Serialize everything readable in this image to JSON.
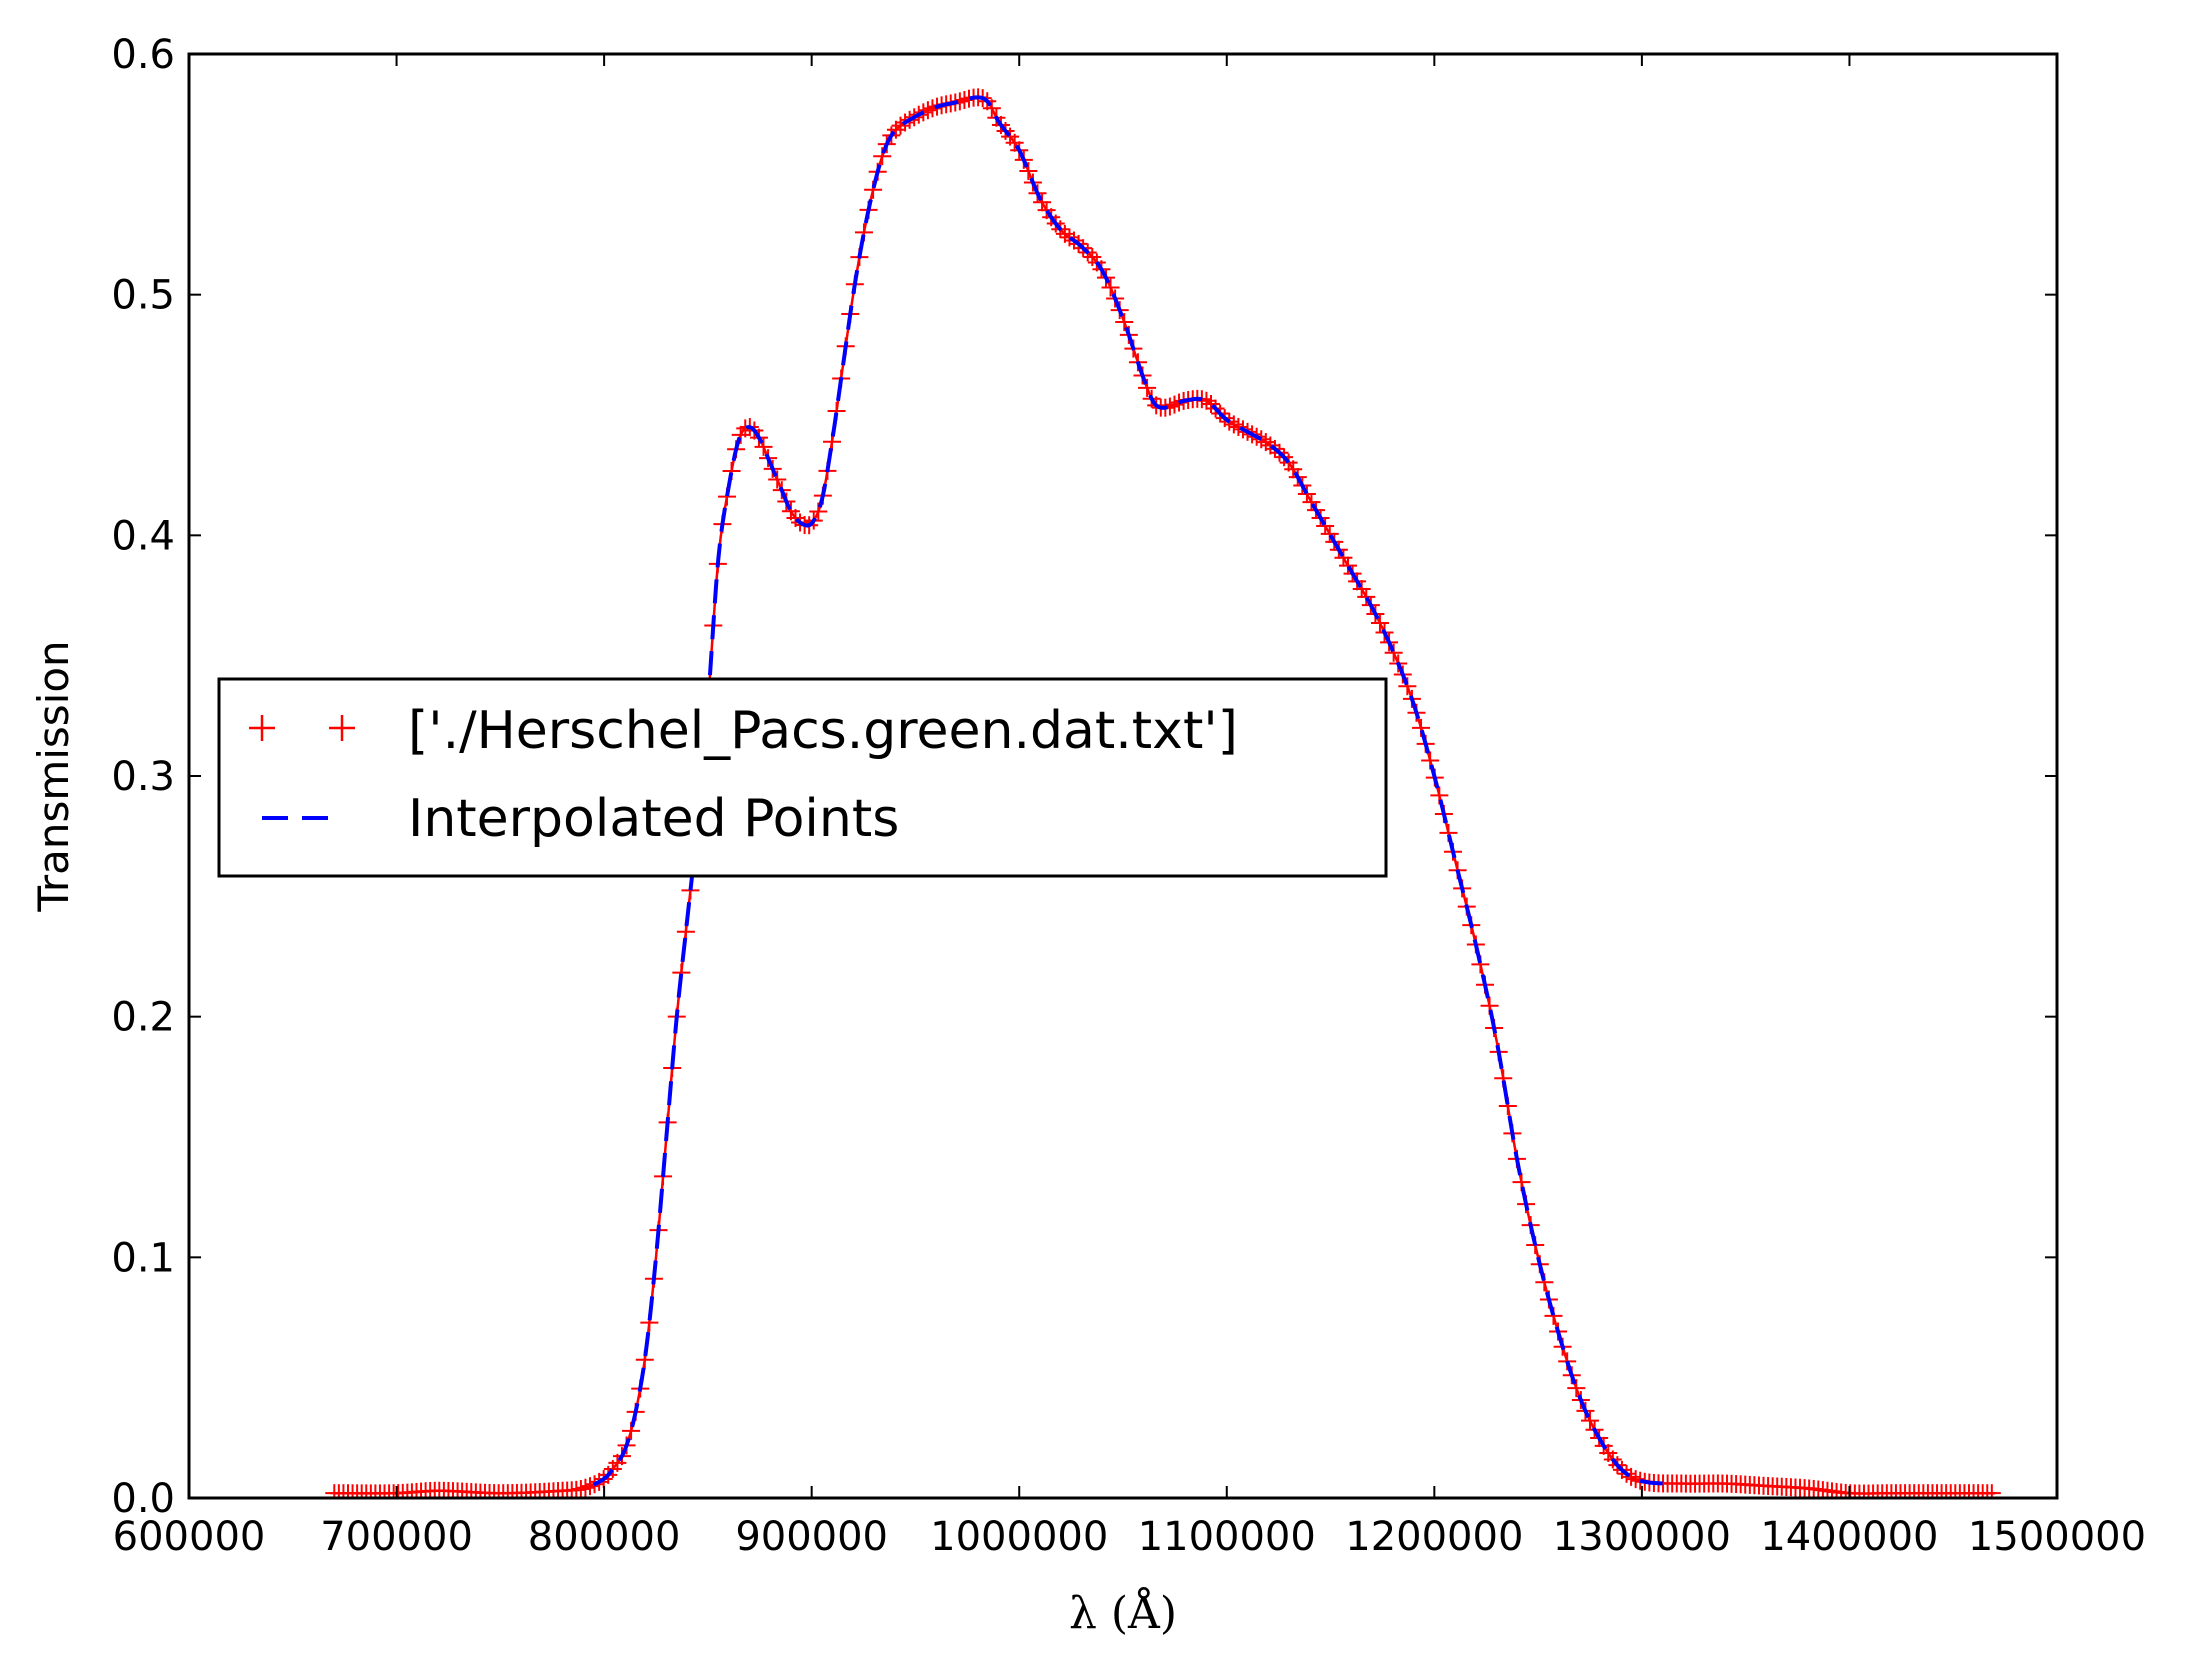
{
  "chart_data": {
    "type": "line",
    "xlabel": "λ (Å)",
    "ylabel": "Transmission",
    "xlim": [
      600000,
      1500000
    ],
    "ylim": [
      0.0,
      0.6
    ],
    "grid": false,
    "legend_position": "center-left",
    "x_ticks": [
      "600000",
      "700000",
      "800000",
      "900000",
      "1000000",
      "1100000",
      "1200000",
      "1300000",
      "1400000",
      "1500000"
    ],
    "y_ticks": [
      "0.0",
      "0.1",
      "0.2",
      "0.3",
      "0.4",
      "0.5",
      "0.6"
    ],
    "series": [
      {
        "name": "['./Herschel_Pacs.green.dat.txt']",
        "style": "markers-plus",
        "color": "#ff0000",
        "points": [
          [
            670000,
            0.002
          ],
          [
            700000,
            0.002
          ],
          [
            720000,
            0.003
          ],
          [
            750000,
            0.002
          ],
          [
            780000,
            0.003
          ],
          [
            790000,
            0.004
          ],
          [
            800000,
            0.008
          ],
          [
            805000,
            0.013
          ],
          [
            810000,
            0.02
          ],
          [
            815000,
            0.035
          ],
          [
            820000,
            0.06
          ],
          [
            825000,
            0.1
          ],
          [
            830000,
            0.15
          ],
          [
            835000,
            0.2
          ],
          [
            840000,
            0.24
          ],
          [
            845000,
            0.28
          ],
          [
            850000,
            0.33
          ],
          [
            855000,
            0.39
          ],
          [
            860000,
            0.42
          ],
          [
            865000,
            0.44
          ],
          [
            870000,
            0.445
          ],
          [
            875000,
            0.44
          ],
          [
            880000,
            0.43
          ],
          [
            885000,
            0.42
          ],
          [
            890000,
            0.41
          ],
          [
            895000,
            0.405
          ],
          [
            900000,
            0.405
          ],
          [
            905000,
            0.415
          ],
          [
            910000,
            0.44
          ],
          [
            915000,
            0.47
          ],
          [
            920000,
            0.5
          ],
          [
            925000,
            0.525
          ],
          [
            930000,
            0.545
          ],
          [
            935000,
            0.56
          ],
          [
            940000,
            0.568
          ],
          [
            950000,
            0.574
          ],
          [
            960000,
            0.578
          ],
          [
            970000,
            0.58
          ],
          [
            980000,
            0.582
          ],
          [
            985000,
            0.58
          ],
          [
            990000,
            0.572
          ],
          [
            1000000,
            0.56
          ],
          [
            1010000,
            0.54
          ],
          [
            1020000,
            0.527
          ],
          [
            1030000,
            0.52
          ],
          [
            1040000,
            0.51
          ],
          [
            1050000,
            0.49
          ],
          [
            1060000,
            0.465
          ],
          [
            1065000,
            0.455
          ],
          [
            1070000,
            0.453
          ],
          [
            1080000,
            0.456
          ],
          [
            1090000,
            0.456
          ],
          [
            1100000,
            0.448
          ],
          [
            1110000,
            0.443
          ],
          [
            1120000,
            0.438
          ],
          [
            1130000,
            0.43
          ],
          [
            1140000,
            0.415
          ],
          [
            1150000,
            0.4
          ],
          [
            1160000,
            0.385
          ],
          [
            1170000,
            0.37
          ],
          [
            1180000,
            0.352
          ],
          [
            1190000,
            0.33
          ],
          [
            1200000,
            0.3
          ],
          [
            1210000,
            0.265
          ],
          [
            1220000,
            0.23
          ],
          [
            1230000,
            0.19
          ],
          [
            1240000,
            0.14
          ],
          [
            1250000,
            0.1
          ],
          [
            1260000,
            0.068
          ],
          [
            1270000,
            0.042
          ],
          [
            1280000,
            0.024
          ],
          [
            1290000,
            0.012
          ],
          [
            1300000,
            0.007
          ],
          [
            1320000,
            0.006
          ],
          [
            1340000,
            0.006
          ],
          [
            1360000,
            0.005
          ],
          [
            1380000,
            0.004
          ],
          [
            1400000,
            0.002
          ],
          [
            1420000,
            0.002
          ],
          [
            1440000,
            0.002
          ],
          [
            1470000,
            0.002
          ]
        ]
      },
      {
        "name": "Interpolated Points",
        "style": "dashed-line",
        "color": "#0000ff"
      }
    ]
  }
}
